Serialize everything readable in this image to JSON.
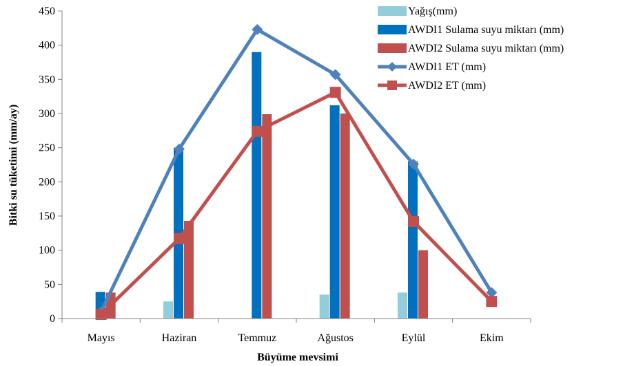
{
  "chart_data": {
    "type": "bar",
    "categories": [
      "Mayıs",
      "Haziran",
      "Temmuz",
      "Ağustos",
      "Eylül",
      "Ekim"
    ],
    "xlabel": "Büyüme mevsimi",
    "ylabel": "Bitki su tüketimi (mm/ay)",
    "ylim": [
      0,
      450
    ],
    "yticks": [
      0,
      50,
      100,
      150,
      200,
      250,
      300,
      350,
      400,
      450
    ],
    "grid": false,
    "legend_position": "top-right",
    "series": [
      {
        "name": "Yağış(mm)",
        "kind": "bar",
        "color": "#92CDDC",
        "values": [
          0,
          25,
          0,
          35,
          38,
          0
        ]
      },
      {
        "name": "AWDI1 Sulama suyu miktarı (mm)",
        "kind": "bar",
        "color": "#0070C0",
        "values": [
          39,
          250,
          390,
          312,
          230,
          0
        ]
      },
      {
        "name": "AWDI2 Sulama suyu miktarı (mm)",
        "kind": "bar",
        "color": "#C0504D",
        "values": [
          38,
          143,
          299,
          300,
          100,
          0
        ]
      },
      {
        "name": "AWDI1 ET (mm)",
        "kind": "line",
        "marker": "diamond",
        "color": "#4F81BD",
        "values": [
          10,
          248,
          423,
          357,
          226,
          38
        ]
      },
      {
        "name": "AWDI2 ET (mm)",
        "kind": "line",
        "marker": "square",
        "color": "#C0504D",
        "values": [
          6,
          117,
          274,
          331,
          142,
          25
        ]
      }
    ]
  }
}
